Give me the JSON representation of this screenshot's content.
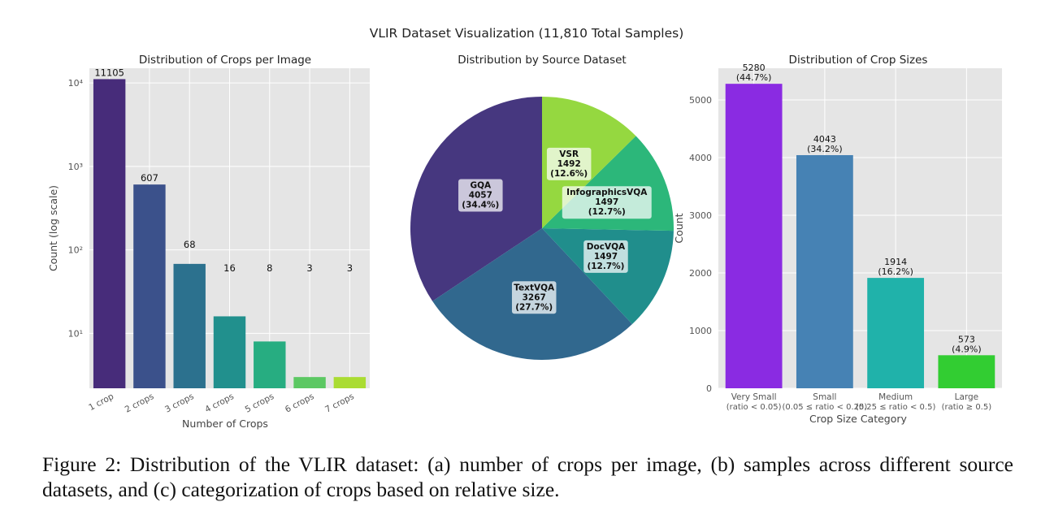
{
  "suptitle": "VLIR Dataset Visualization (11,810 Total Samples)",
  "caption": "Figure 2: Distribution of the VLIR dataset: (a) number of crops per image, (b) samples across different source datasets, and (c) categorization of crops based on relative size.",
  "chart_data": [
    {
      "type": "bar",
      "title": "Distribution of Crops per Image",
      "xlabel": "Number of Crops",
      "ylabel": "Count (log scale)",
      "yscale": "log",
      "ylim": [
        2.2,
        15000
      ],
      "yticks": [
        {
          "value": 10,
          "label": "10¹"
        },
        {
          "value": 100,
          "label": "10²"
        },
        {
          "value": 1000,
          "label": "10³"
        },
        {
          "value": 10000,
          "label": "10⁴"
        }
      ],
      "categories": [
        "1 crop",
        "2 crops",
        "3 crops",
        "4 crops",
        "5 crops",
        "6 crops",
        "7 crops"
      ],
      "values": [
        11105,
        607,
        68,
        16,
        8,
        3,
        3
      ],
      "value_labels": [
        "11105",
        "607",
        "68",
        "16",
        "8",
        "3",
        "3"
      ],
      "colors": [
        "#472c7a",
        "#3b518b",
        "#2c718e",
        "#21908d",
        "#27ad81",
        "#5cc863",
        "#aadc32"
      ],
      "grid": true
    },
    {
      "type": "pie",
      "title": "Distribution by Source Dataset",
      "slices": [
        {
          "name": "GQA",
          "value": 4057,
          "percent": "(34.4%)",
          "color": "#46377f"
        },
        {
          "name": "TextVQA",
          "value": 3267,
          "percent": "(27.7%)",
          "color": "#31688e"
        },
        {
          "name": "DocVQA",
          "value": 1497,
          "percent": "(12.7%)",
          "color": "#208e8c"
        },
        {
          "name": "InfographicsVQA",
          "value": 1497,
          "percent": "(12.7%)",
          "color": "#2cb77a"
        },
        {
          "name": "VSR",
          "value": 1492,
          "percent": "(12.6%)",
          "color": "#95d840"
        }
      ]
    },
    {
      "type": "bar",
      "title": "Distribution of Crop Sizes",
      "xlabel": "Crop Size Category",
      "ylabel": "Count",
      "ylim": [
        0,
        5550
      ],
      "yticks": [
        0,
        1000,
        2000,
        3000,
        4000,
        5000
      ],
      "categories": [
        {
          "name": "Very Small",
          "range": "(ratio < 0.05)"
        },
        {
          "name": "Small",
          "range": "(0.05 ≤ ratio < 0.25)"
        },
        {
          "name": "Medium",
          "range": "(0.25 ≤ ratio < 0.5)"
        },
        {
          "name": "Large",
          "range": "(ratio ≥ 0.5)"
        }
      ],
      "values": [
        5280,
        4043,
        1914,
        573
      ],
      "percents": [
        "(44.7%)",
        "(34.2%)",
        "(16.2%)",
        "(4.9%)"
      ],
      "colors": [
        "#8a2be2",
        "#4682b4",
        "#20b2aa",
        "#32cd32"
      ],
      "grid": true
    }
  ]
}
